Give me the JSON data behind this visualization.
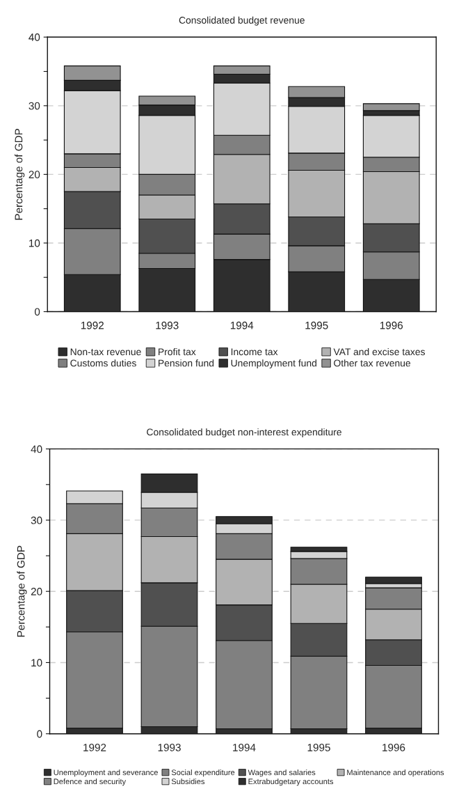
{
  "chart_data": [
    {
      "type": "bar",
      "title": "Consolidated budget revenue",
      "ylabel": "Percentage of GDP",
      "stacked": true,
      "categories": [
        "1992",
        "1993",
        "1994",
        "1995",
        "1996"
      ],
      "ylim": [
        0,
        40
      ],
      "yticks": [
        0,
        {
          "value": 5,
          "label": null
        },
        10,
        {
          "value": 15,
          "label": null
        },
        20,
        {
          "value": 25,
          "label": null
        },
        30,
        {
          "value": 35,
          "label": null
        },
        40
      ],
      "grid": "y",
      "legend": "bottom",
      "series": [
        {
          "name": "Non-tax revenue",
          "color": "#2e2e2e",
          "values": [
            5.4,
            6.3,
            7.6,
            5.8,
            4.7
          ]
        },
        {
          "name": "Profit tax",
          "color": "#808080",
          "values": [
            6.7,
            2.2,
            3.7,
            3.8,
            4.0
          ]
        },
        {
          "name": "Income tax",
          "color": "#505050",
          "values": [
            5.4,
            5.0,
            4.4,
            4.2,
            4.1
          ]
        },
        {
          "name": "VAT and excise taxes",
          "color": "#b2b2b2",
          "values": [
            3.5,
            3.5,
            7.2,
            6.8,
            7.6
          ]
        },
        {
          "name": "Customs duties",
          "color": "#808080",
          "values": [
            2.0,
            3.0,
            2.8,
            2.5,
            2.1
          ]
        },
        {
          "name": "Pension fund",
          "color": "#d3d3d3",
          "values": [
            9.2,
            8.6,
            7.6,
            6.8,
            6.1
          ]
        },
        {
          "name": "Unemployment fund",
          "color": "#2e2e2e",
          "values": [
            1.5,
            1.5,
            1.3,
            1.3,
            0.7
          ]
        },
        {
          "name": "Other tax revenue",
          "color": "#929292",
          "values": [
            2.1,
            1.3,
            1.2,
            1.6,
            1.0
          ]
        }
      ]
    },
    {
      "type": "bar",
      "title": "Consolidated budget non-interest expenditure",
      "ylabel": "Percentage of GDP",
      "stacked": true,
      "categories": [
        "1992",
        "1993",
        "1994",
        "1995",
        "1996"
      ],
      "ylim": [
        0,
        40
      ],
      "yticks": [
        0,
        {
          "value": 5,
          "label": null
        },
        10,
        {
          "value": 15,
          "label": null
        },
        20,
        {
          "value": 25,
          "label": null
        },
        30,
        {
          "value": 35,
          "label": null
        },
        40
      ],
      "grid": "y",
      "legend": "bottom",
      "series": [
        {
          "name": "Unemployment and severance",
          "color": "#2e2e2e",
          "values": [
            0.8,
            1.0,
            0.7,
            0.7,
            0.8
          ]
        },
        {
          "name": "Social expenditure",
          "color": "#808080",
          "values": [
            13.5,
            14.1,
            12.4,
            10.2,
            8.8
          ]
        },
        {
          "name": "Wages and salaries",
          "color": "#505050",
          "values": [
            5.8,
            6.1,
            5.0,
            4.6,
            3.6
          ]
        },
        {
          "name": "Maintenance and operations",
          "color": "#b2b2b2",
          "values": [
            8.0,
            6.5,
            6.4,
            5.5,
            4.3
          ]
        },
        {
          "name": "Defence and security",
          "color": "#808080",
          "values": [
            4.2,
            4.0,
            3.6,
            3.6,
            3.0
          ]
        },
        {
          "name": "Subsidies",
          "color": "#d3d3d3",
          "values": [
            1.8,
            2.2,
            1.4,
            1.0,
            0.6
          ]
        },
        {
          "name": "Extrabudgetary accounts",
          "color": "#2e2e2e",
          "values": [
            null,
            2.6,
            1.0,
            0.6,
            0.9
          ]
        }
      ]
    }
  ]
}
